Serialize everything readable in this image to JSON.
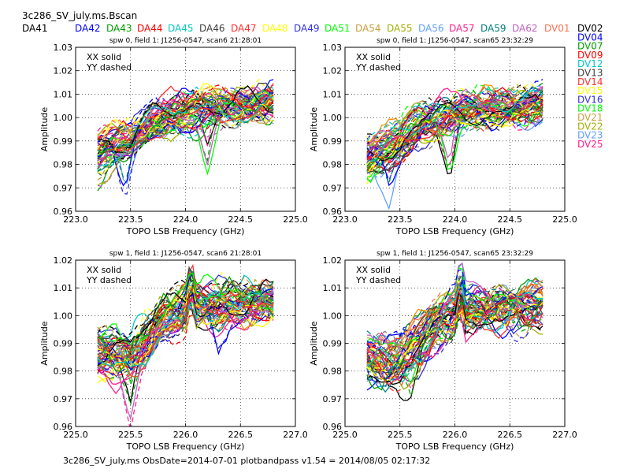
{
  "figure": {
    "title": "3c286_SV_july.ms.Bscan",
    "footer": "3c286_SV_july.ms  ObsDate=2014-07-01   plotbandpass v1.54 = 2014/08/05 02:17:32"
  },
  "antenna_legend": {
    "top_row": [
      {
        "name": "DA41",
        "color": "#000000"
      },
      {
        "name": "DA42",
        "color": "#0000ff"
      },
      {
        "name": "DA43",
        "color": "#00a000"
      },
      {
        "name": "DA44",
        "color": "#ff0000"
      },
      {
        "name": "DA45",
        "color": "#00c8c8"
      },
      {
        "name": "DA46",
        "color": "#404040"
      },
      {
        "name": "DA47",
        "color": "#ff3030"
      },
      {
        "name": "DA48",
        "color": "#ffff00"
      },
      {
        "name": "DA49",
        "color": "#3030e0"
      },
      {
        "name": "DA51",
        "color": "#00ff00"
      },
      {
        "name": "DA54",
        "color": "#c8a040"
      },
      {
        "name": "DA55",
        "color": "#a0b000"
      },
      {
        "name": "DA56",
        "color": "#60a0ff"
      },
      {
        "name": "DA57",
        "color": "#ff2090"
      },
      {
        "name": "DA59",
        "color": "#008080"
      },
      {
        "name": "DA62",
        "color": "#c060c0"
      },
      {
        "name": "DV01",
        "color": "#ff7050"
      }
    ],
    "right_column": [
      {
        "name": "DV02",
        "color": "#000000"
      },
      {
        "name": "DV04",
        "color": "#0000ff"
      },
      {
        "name": "DV07",
        "color": "#00a000"
      },
      {
        "name": "DV09",
        "color": "#ff0000"
      },
      {
        "name": "DV12",
        "color": "#00c8c8"
      },
      {
        "name": "DV13",
        "color": "#404040"
      },
      {
        "name": "DV14",
        "color": "#ff3030"
      },
      {
        "name": "DV15",
        "color": "#ffff00"
      },
      {
        "name": "DV16",
        "color": "#3030e0"
      },
      {
        "name": "DV18",
        "color": "#00ff00"
      },
      {
        "name": "DV21",
        "color": "#c8a040"
      },
      {
        "name": "DV22",
        "color": "#a0b000"
      },
      {
        "name": "DV23",
        "color": "#60a0ff"
      },
      {
        "name": "DV25",
        "color": "#ff2090"
      }
    ]
  },
  "chart_data": [
    {
      "type": "line",
      "title": "spw 0,  field 1: J1256-0547,  scan6  21:28:01",
      "xlabel": "TOPO LSB Frequency (GHz)",
      "ylabel": "Amplitude",
      "xlim": [
        223.0,
        225.0
      ],
      "ylim": [
        0.96,
        1.03
      ],
      "xticks": [
        "223.0",
        "223.5",
        "224.0",
        "224.5",
        "225.0"
      ],
      "yticks": [
        "0.96",
        "0.97",
        "0.98",
        "0.99",
        "1.00",
        "1.01",
        "1.02",
        "1.03"
      ],
      "grid": true,
      "annotation": [
        "XX solid",
        "YY dashed"
      ],
      "x_range": [
        223.2,
        224.8
      ],
      "trend": {
        "x": [
          223.2,
          223.5,
          223.7,
          224.0,
          224.5,
          224.8
        ],
        "y": [
          0.983,
          0.99,
          0.998,
          1.002,
          1.005,
          1.006
        ]
      },
      "features": [
        {
          "x": 224.2,
          "y": 0.981
        },
        {
          "x": 223.45,
          "y": 0.969
        }
      ],
      "series_note": "one line per antenna and polarization"
    },
    {
      "type": "line",
      "title": "spw 0,  field 1: J1256-0547,  scan65  23:32:29",
      "xlabel": "TOPO LSB Frequency (GHz)",
      "ylabel": "Amplitude",
      "xlim": [
        223.0,
        225.0
      ],
      "ylim": [
        0.96,
        1.03
      ],
      "xticks": [
        "223.0",
        "223.5",
        "224.0",
        "224.5",
        "225.0"
      ],
      "yticks": [
        "0.96",
        "0.97",
        "0.98",
        "0.99",
        "1.00",
        "1.01",
        "1.02",
        "1.03"
      ],
      "grid": true,
      "annotation": [
        "XX solid",
        "YY dashed"
      ],
      "x_range": [
        223.2,
        224.8
      ],
      "trend": {
        "x": [
          223.2,
          223.5,
          223.7,
          224.0,
          224.5,
          224.8
        ],
        "y": [
          0.982,
          0.99,
          0.998,
          1.002,
          1.005,
          1.006
        ]
      },
      "features": [
        {
          "x": 223.95,
          "y": 0.977
        },
        {
          "x": 223.4,
          "y": 0.969
        }
      ],
      "series_note": "one line per antenna and polarization"
    },
    {
      "type": "line",
      "title": "spw 1,  field 1: J1256-0547,  scan6  21:28:01",
      "xlabel": "TOPO LSB Frequency (GHz)",
      "ylabel": "Amplitude",
      "xlim": [
        225.0,
        227.0
      ],
      "ylim": [
        0.96,
        1.02
      ],
      "xticks": [
        "225.0",
        "225.5",
        "226.0",
        "226.5",
        "227.0"
      ],
      "yticks": [
        "0.96",
        "0.97",
        "0.98",
        "0.99",
        "1.00",
        "1.01",
        "1.02"
      ],
      "grid": true,
      "annotation": [
        "XX solid",
        "YY dashed"
      ],
      "x_range": [
        225.2,
        226.8
      ],
      "trend": {
        "x": [
          225.2,
          225.5,
          225.8,
          226.0,
          226.5,
          226.8
        ],
        "y": [
          0.987,
          0.984,
          0.998,
          1.003,
          1.004,
          1.005
        ]
      },
      "spike": {
        "x": 226.05,
        "y": 1.016
      },
      "features": [
        {
          "x": 225.5,
          "y": 0.968
        },
        {
          "x": 226.3,
          "y": 0.992
        }
      ],
      "series_note": "one line per antenna and polarization"
    },
    {
      "type": "line",
      "title": "spw 1,  field 1: J1256-0547,  scan65  23:32:29",
      "xlabel": "TOPO LSB Frequency (GHz)",
      "ylabel": "Amplitude",
      "xlim": [
        225.0,
        227.0
      ],
      "ylim": [
        0.96,
        1.02
      ],
      "xticks": [
        "225.0",
        "225.5",
        "226.0",
        "226.5",
        "227.0"
      ],
      "yticks": [
        "0.96",
        "0.97",
        "0.98",
        "0.99",
        "1.00",
        "1.01",
        "1.02"
      ],
      "grid": true,
      "annotation": [
        "XX solid",
        "YY dashed"
      ],
      "x_range": [
        225.2,
        226.8
      ],
      "trend": {
        "x": [
          225.2,
          225.5,
          225.8,
          226.0,
          226.5,
          226.8
        ],
        "y": [
          0.985,
          0.983,
          0.997,
          1.002,
          1.003,
          1.004
        ]
      },
      "spike": {
        "x": 226.05,
        "y": 1.017
      },
      "features": [
        {
          "x": 225.6,
          "y": 0.977
        },
        {
          "x": 225.4,
          "y": 0.975
        }
      ],
      "series_note": "one line per antenna and polarization"
    }
  ]
}
